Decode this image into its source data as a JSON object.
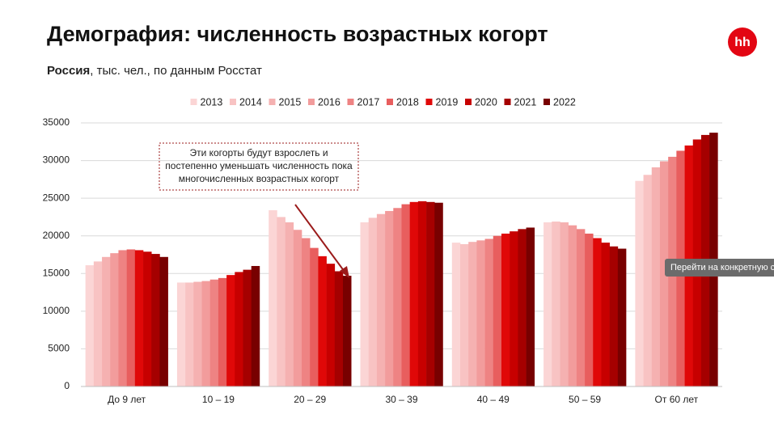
{
  "chart_data": {
    "type": "bar",
    "title": "Демография: численность возрастных когорт",
    "subtitle_bold": "Россия",
    "subtitle": ", тыс. чел., по данным Росстат",
    "annotation": [
      "Эти когорты будут взрослеть и",
      "постепенно уменьшать численность пока",
      "многочисленных возрастных когорт"
    ],
    "categories": [
      "До 9 лет",
      "10 – 19",
      "20 – 29",
      "30 – 39",
      "40 – 49",
      "50 – 59",
      "От 60 лет"
    ],
    "series": [
      {
        "name": "2013",
        "color": "#fbd5d5",
        "values": [
          16100,
          13800,
          23400,
          21800,
          19100,
          21800,
          27300
        ]
      },
      {
        "name": "2014",
        "color": "#f8c3c3",
        "values": [
          16600,
          13800,
          22500,
          22400,
          18900,
          21900,
          28100
        ]
      },
      {
        "name": "2015",
        "color": "#f5b1b1",
        "values": [
          17200,
          13900,
          21800,
          22900,
          19200,
          21800,
          29100
        ]
      },
      {
        "name": "2016",
        "color": "#f29c9c",
        "values": [
          17700,
          14000,
          20800,
          23300,
          19400,
          21400,
          29900
        ]
      },
      {
        "name": "2017",
        "color": "#ee8383",
        "values": [
          18100,
          14200,
          19700,
          23700,
          19600,
          20900,
          30500
        ]
      },
      {
        "name": "2018",
        "color": "#e85e5e",
        "values": [
          18200,
          14400,
          18400,
          24200,
          20000,
          20300,
          31300
        ]
      },
      {
        "name": "2019",
        "color": "#e00808",
        "values": [
          18100,
          14800,
          17300,
          24500,
          20300,
          19700,
          32000
        ]
      },
      {
        "name": "2020",
        "color": "#c70000",
        "values": [
          17900,
          15200,
          16300,
          24600,
          20600,
          19100,
          32800
        ]
      },
      {
        "name": "2021",
        "color": "#a50000",
        "values": [
          17600,
          15500,
          15300,
          24500,
          20900,
          18600,
          33400
        ]
      },
      {
        "name": "2022",
        "color": "#780000",
        "values": [
          17200,
          16000,
          14700,
          24400,
          21100,
          18300,
          33700
        ]
      }
    ],
    "ylim": [
      0,
      35000
    ],
    "yticks": [
      0,
      5000,
      10000,
      15000,
      20000,
      25000,
      30000,
      35000
    ],
    "grid": true,
    "legend": "top"
  },
  "logo": "hh",
  "tooltip": "Перейти на конкретную ст"
}
